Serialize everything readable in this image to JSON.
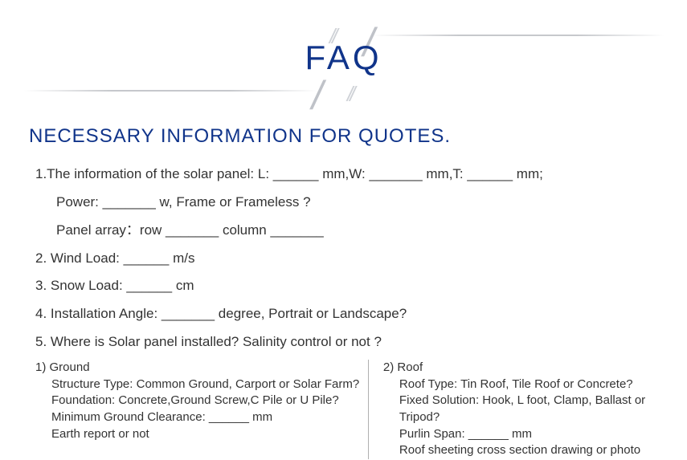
{
  "header": {
    "title": "FAQ"
  },
  "subtitle": "NECESSARY INFORMATION FOR QUOTES.",
  "items": {
    "q1_line1": "1.The information of the solar panel: L: ______ mm,W: _______ mm,T: ______ mm;",
    "q1_line2": "Power: _______ w, Frame or Frameless ?",
    "q1_line3": "Panel array：row _______ column _______",
    "q2": "2. Wind Load: ______ m/s",
    "q3": "3. Snow Load: ______ cm",
    "q4": "4. Installation Angle: _______ degree, Portrait or Landscape?",
    "q5": "5. Where is Solar panel installed? Salinity control or not ?"
  },
  "ground": {
    "title": "1) Ground",
    "l1": "Structure Type: Common Ground, Carport or Solar Farm?",
    "l2": "Foundation: Concrete,Ground Screw,C Pile or U Pile?",
    "l3": "Minimum Ground Clearance: ______ mm",
    "l4": "Earth report or not"
  },
  "roof": {
    "title": "2) Roof",
    "l1": "Roof Type: Tin Roof, Tile Roof  or Concrete?",
    "l2": "Fixed Solution: Hook, L foot, Clamp, Ballast or Tripod?",
    "l3": "Purlin Span: ______ mm",
    "l4": "Roof sheeting cross section drawing or photo"
  }
}
